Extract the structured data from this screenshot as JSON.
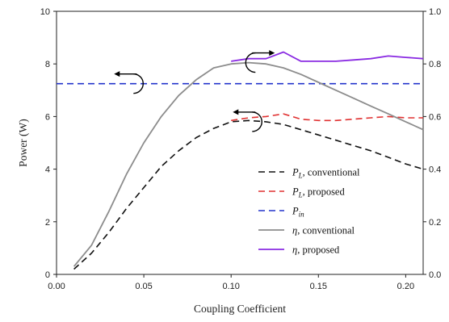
{
  "chart_data": {
    "type": "line",
    "title": "",
    "xlabel": "Coupling Coefficient",
    "ylabel": "Power (W)",
    "xlim": [
      0.0,
      0.21
    ],
    "ylim": [
      0,
      10
    ],
    "y2lim": [
      0.0,
      1.0
    ],
    "x_ticks": [
      "0.00",
      "0.05",
      "0.10",
      "0.15",
      "0.20"
    ],
    "x_tick_values": [
      0.0,
      0.05,
      0.1,
      0.15,
      0.2
    ],
    "y_ticks": [
      "0",
      "2",
      "4",
      "6",
      "8",
      "10"
    ],
    "y_tick_values": [
      0,
      2,
      4,
      6,
      8,
      10
    ],
    "y2_ticks": [
      "0.0",
      "0.2",
      "0.4",
      "0.6",
      "0.8",
      "1.0"
    ],
    "y2_tick_values": [
      0.0,
      0.2,
      0.4,
      0.6,
      0.8,
      1.0
    ],
    "grid": false,
    "legend_position": "bottom-right",
    "series": [
      {
        "legend_main": "P",
        "legend_sub": "L",
        "legend_rest": ", conventional",
        "axis": "left",
        "color": "#111111",
        "dash": "8,5",
        "x": [
          0.01,
          0.02,
          0.03,
          0.04,
          0.05,
          0.06,
          0.07,
          0.08,
          0.09,
          0.1,
          0.11,
          0.12,
          0.13,
          0.14,
          0.15,
          0.16,
          0.17,
          0.18,
          0.19,
          0.2,
          0.21
        ],
        "y": [
          0.2,
          0.8,
          1.6,
          2.5,
          3.3,
          4.1,
          4.7,
          5.2,
          5.55,
          5.8,
          5.85,
          5.8,
          5.7,
          5.5,
          5.3,
          5.1,
          4.9,
          4.7,
          4.45,
          4.2,
          4.0
        ]
      },
      {
        "legend_main": "P",
        "legend_sub": "L",
        "legend_rest": ", proposed",
        "axis": "left",
        "color": "#e03030",
        "dash": "8,5",
        "x": [
          0.1,
          0.11,
          0.12,
          0.13,
          0.14,
          0.15,
          0.16,
          0.17,
          0.18,
          0.19,
          0.2,
          0.21
        ],
        "y": [
          5.85,
          5.95,
          6.0,
          6.1,
          5.9,
          5.85,
          5.85,
          5.9,
          5.95,
          6.0,
          5.95,
          5.95
        ]
      },
      {
        "legend_main": "P",
        "legend_sub": "in",
        "legend_rest": "",
        "axis": "left",
        "color": "#2233cc",
        "dash": "8,5",
        "x": [
          0.0,
          0.21
        ],
        "y": [
          7.25,
          7.25
        ]
      },
      {
        "legend_main": "η",
        "legend_sub": "",
        "legend_rest": ", conventional",
        "axis": "right",
        "color": "#8c8c8c",
        "dash": "",
        "x": [
          0.01,
          0.02,
          0.03,
          0.04,
          0.05,
          0.06,
          0.07,
          0.08,
          0.09,
          0.1,
          0.11,
          0.12,
          0.13,
          0.14,
          0.15,
          0.16,
          0.17,
          0.18,
          0.19,
          0.2,
          0.21
        ],
        "y": [
          0.03,
          0.11,
          0.24,
          0.38,
          0.5,
          0.6,
          0.68,
          0.74,
          0.785,
          0.8,
          0.805,
          0.8,
          0.785,
          0.76,
          0.73,
          0.7,
          0.67,
          0.64,
          0.61,
          0.58,
          0.55
        ]
      },
      {
        "legend_main": "η",
        "legend_sub": "",
        "legend_rest": ", proposed",
        "axis": "right",
        "color": "#8a2be2",
        "dash": "",
        "x": [
          0.1,
          0.11,
          0.12,
          0.13,
          0.14,
          0.15,
          0.16,
          0.17,
          0.18,
          0.19,
          0.2,
          0.21
        ],
        "y": [
          0.81,
          0.82,
          0.82,
          0.845,
          0.81,
          0.81,
          0.81,
          0.815,
          0.82,
          0.83,
          0.825,
          0.82
        ]
      }
    ],
    "annotations": [
      {
        "type": "axis-pointer",
        "direction": "left",
        "at": [
          0.045,
          7.25
        ]
      },
      {
        "type": "axis-pointer",
        "direction": "left",
        "at": [
          0.113,
          5.8
        ]
      },
      {
        "type": "axis-pointer",
        "direction": "right",
        "at": [
          0.113,
          8.05
        ]
      }
    ]
  }
}
